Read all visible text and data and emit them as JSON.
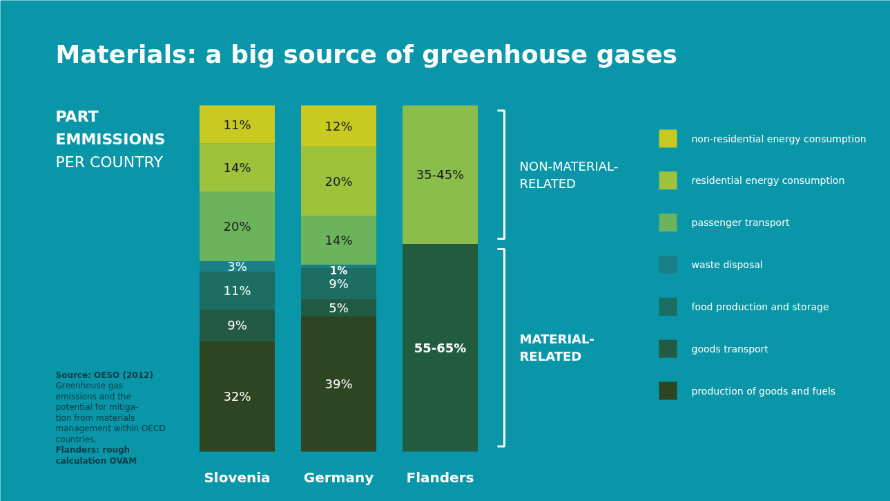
{
  "chart_data": {
    "type": "bar",
    "stacked": true,
    "title": "Materials:  a big source of greenhouse gases",
    "subtitle": "PART\nEMMISSIONS\nPER COUNTRY",
    "categories": [
      "Slovenia",
      "Germany",
      "Flanders"
    ],
    "series": [
      {
        "name": "production of goods and fuels",
        "color": "#2d4520",
        "values": [
          32,
          39,
          null
        ],
        "value_labels": [
          "32%",
          "39%",
          null
        ]
      },
      {
        "name": "goods transport",
        "color": "#235a43",
        "values": [
          9,
          5,
          null
        ],
        "value_labels": [
          "9%",
          "5%",
          null
        ]
      },
      {
        "name": "food production and storage",
        "color": "#1c6e62",
        "values": [
          11,
          9,
          null
        ],
        "value_labels": [
          "11%",
          "9%",
          null
        ]
      },
      {
        "name": "waste disposal",
        "color": "#1a8087",
        "values": [
          3,
          1,
          null
        ],
        "value_labels": [
          "3%",
          "1%",
          null
        ]
      },
      {
        "color": "#225c40",
        "values": [
          null,
          null,
          60
        ]
      },
      {
        "name": "passenger transport",
        "color": "#6cb35e",
        "values": [
          20,
          14,
          null
        ],
        "value_labels": [
          "20%",
          "14%",
          null
        ]
      },
      {
        "name": "residential energy consumption",
        "color": "#9dc23c",
        "values": [
          14,
          20,
          null
        ],
        "value_labels": [
          "14%",
          "20%",
          null
        ]
      },
      {
        "name": "non-residential energy consumption",
        "color": "#c8ca22",
        "values": [
          11,
          12,
          null
        ],
        "value_labels": [
          "11%",
          "12%",
          null
        ]
      },
      {
        "color": "#8abd4c",
        "values": [
          null,
          null,
          40
        ]
      }
    ],
    "annotations": [
      "55-65%",
      "35-45%",
      "MATERIAL-\nRELATED",
      "NON-MATERIAL-\nRELATED",
      "Source: OESO (2012)",
      "Greenhouse gas emissions and the potential for mitiga-tion from materials management within OECD countries.",
      "Flanders: rough calculation OVAM"
    ],
    "legend": "right",
    "grid": false
  }
}
